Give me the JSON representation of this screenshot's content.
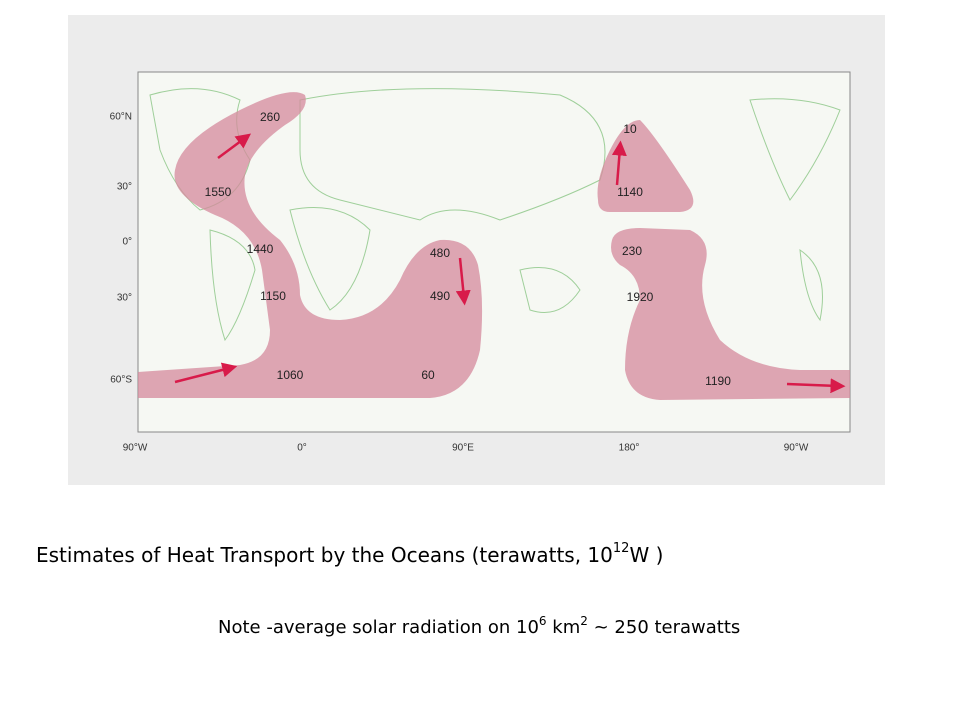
{
  "map": {
    "latitudes": [
      "60°N",
      "30°",
      "0°",
      "30°",
      "60°S"
    ],
    "longitudes": [
      "90°W",
      "0°",
      "90°E",
      "180°",
      "90°W"
    ],
    "transports": [
      260,
      1550,
      1440,
      1150,
      1060,
      60,
      480,
      490,
      10,
      1140,
      230,
      1920,
      1190
    ]
  },
  "caption": {
    "text": "Estimates of Heat Transport by the Oceans (terawatts, 10",
    "sup": "12",
    "tail": "W )"
  },
  "note": {
    "text": "Note -average solar radiation on 10",
    "sup1": "6",
    "mid": " km",
    "sup2": "2",
    "tail": " ~ 250 terawatts"
  }
}
